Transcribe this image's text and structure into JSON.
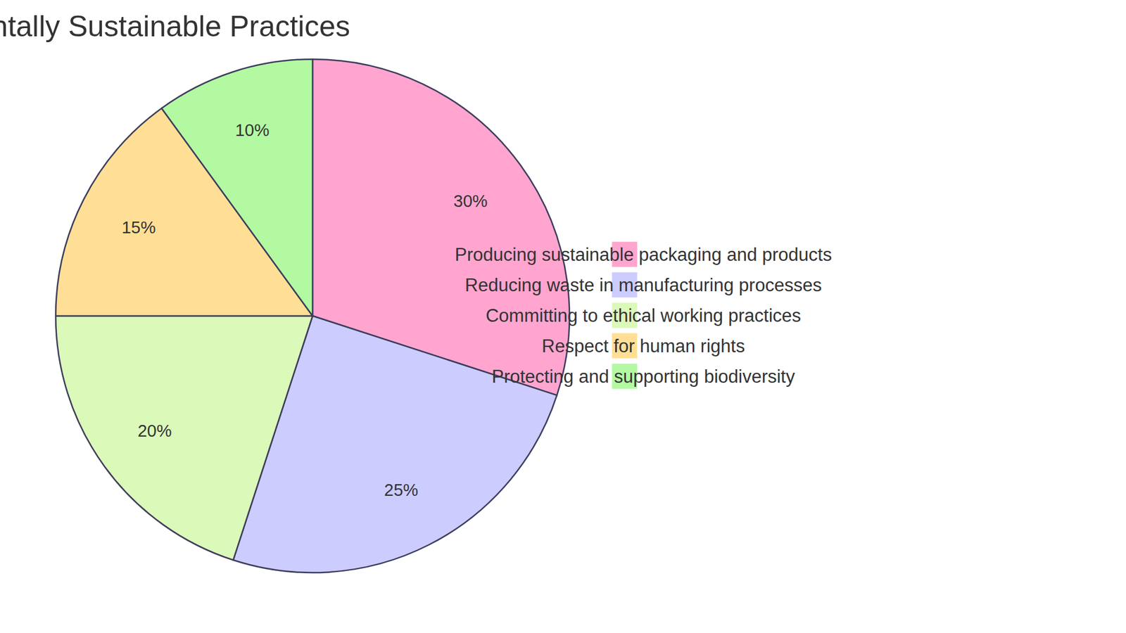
{
  "chart_data": {
    "type": "pie",
    "title": "Importance of Environmentally Sustainable Practices",
    "categories": [
      "Producing sustainable packaging and products",
      "Reducing waste in manufacturing processes",
      "Committing to ethical working practices",
      "Respect for human rights",
      "Protecting and supporting biodiversity"
    ],
    "values": [
      30,
      25,
      20,
      15,
      10
    ],
    "value_labels": [
      "30%",
      "25%",
      "20%",
      "15%",
      "10%"
    ],
    "colors": [
      "#ffa5cf",
      "#ccccff",
      "#dbf9b9",
      "#ffdf95",
      "#b3f9a2"
    ],
    "data_labels": true,
    "legend": "right"
  }
}
